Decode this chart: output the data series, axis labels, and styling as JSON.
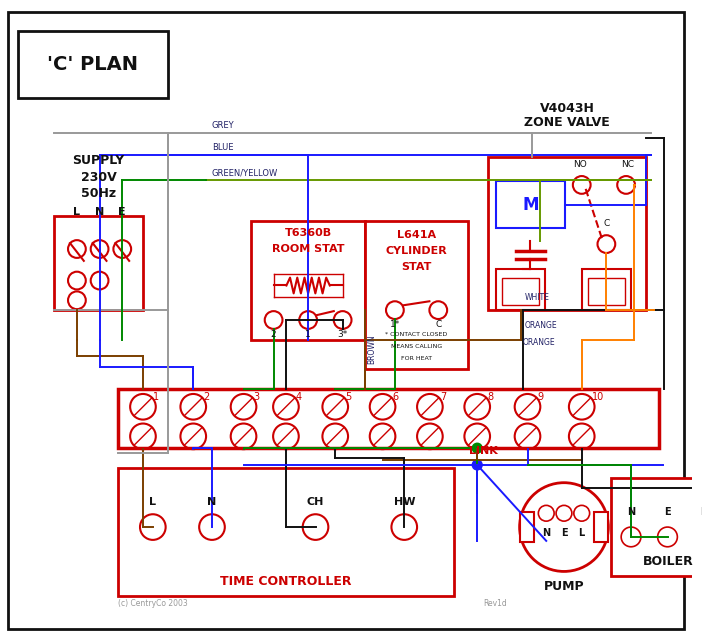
{
  "title": "'C' PLAN",
  "red": "#cc0000",
  "blue": "#1a1aff",
  "green": "#008800",
  "grey": "#999999",
  "brown": "#7B3F00",
  "black": "#111111",
  "orange": "#FF8000",
  "gy": "#669900",
  "lbl": "#222266",
  "supply_label": [
    "SUPPLY",
    "230V",
    "50Hz"
  ],
  "terminal_numbers": [
    "1",
    "2",
    "3",
    "4",
    "5",
    "6",
    "7",
    "8",
    "9",
    "10"
  ],
  "copyright": "(c) CentryCo 2003",
  "revision": "Rev1d",
  "note": "* CONTACT CLOSED\nMEANS CALLING\nFOR HEAT"
}
